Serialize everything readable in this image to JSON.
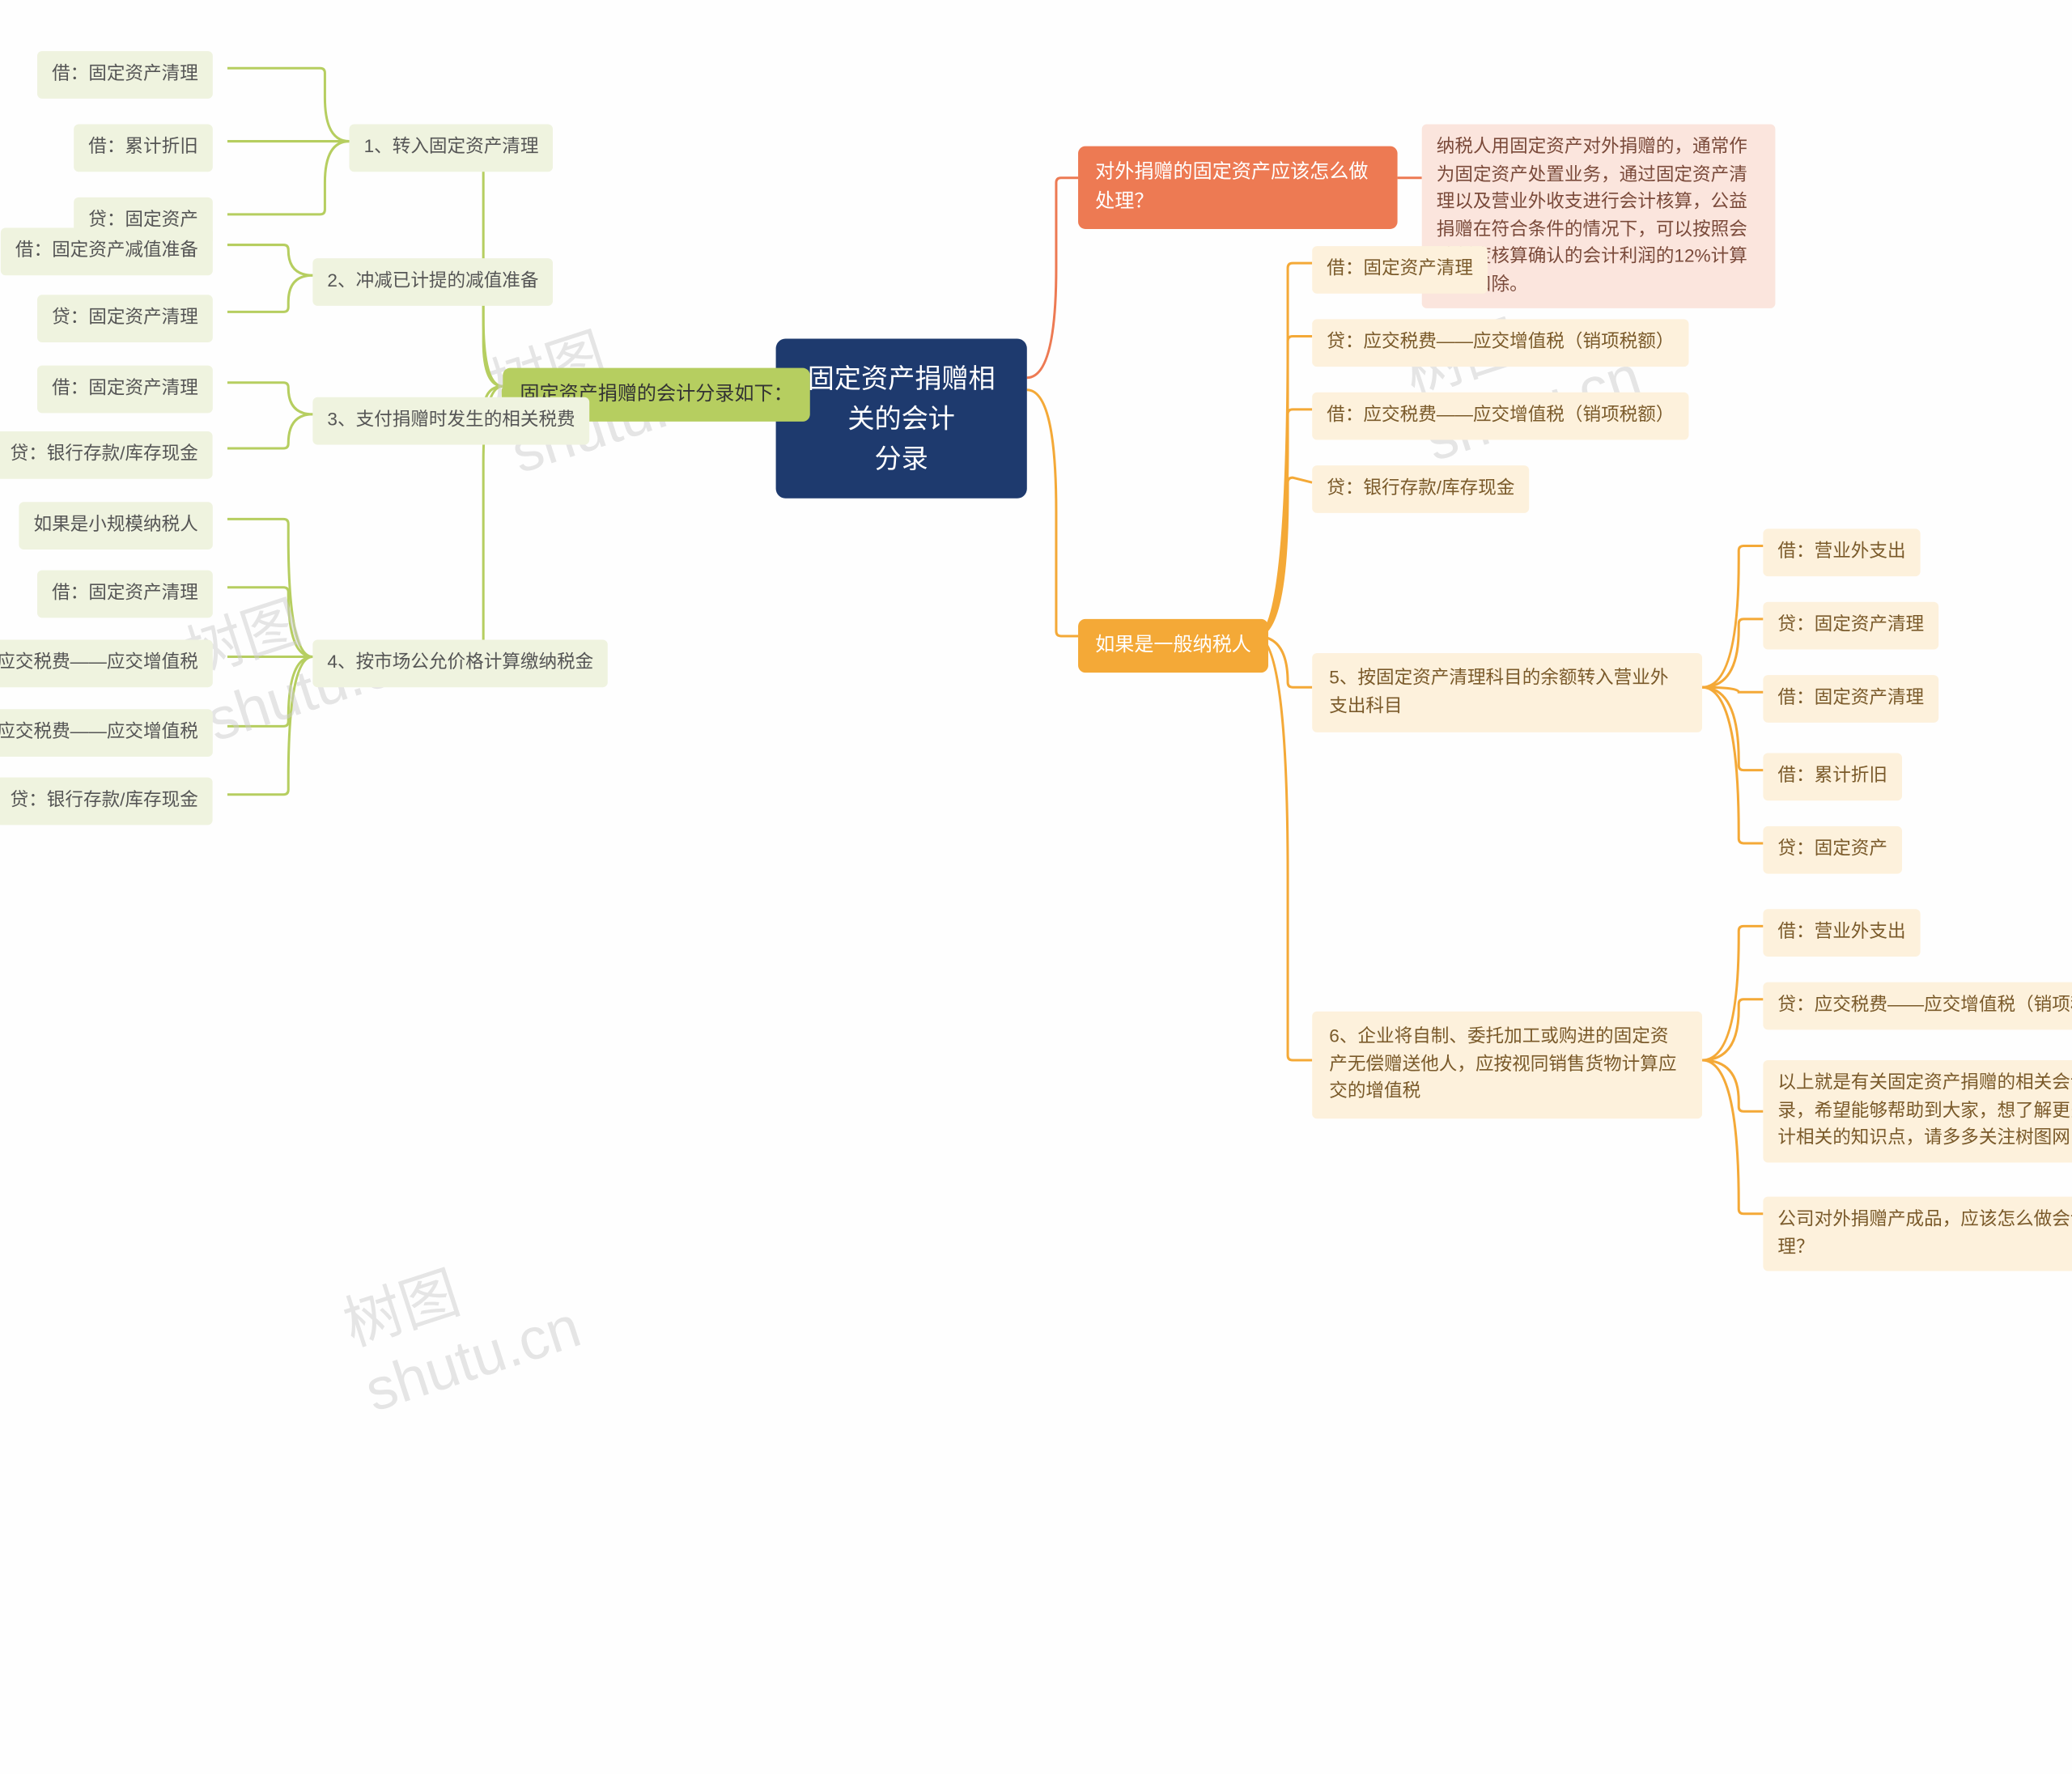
{
  "colors": {
    "center_bg": "#1e3a6e",
    "center_text": "#ffffff",
    "green_branch": "#b6ce60",
    "green_leaf_bg": "#eff3df",
    "green_leaf_text": "#555555",
    "green_line": "#b6ce60",
    "orange_branch": "#ed7a53",
    "orange_leaf_bg": "#fbe5dd",
    "orange_leaf_text": "#7a4a3a",
    "orange_line": "#ed7a53",
    "amber_branch": "#f4a937",
    "amber_leaf_bg": "#fdf1dc",
    "amber_leaf_text": "#7a5a2a",
    "amber_line": "#f4a937",
    "background": "#fefefe"
  },
  "center": {
    "title": "固定资产捐赠相关的会计\n分录"
  },
  "left": {
    "branch": "固定资产捐赠的会计分录如下：",
    "groups": [
      {
        "label": "1、转入固定资产清理",
        "leaves": [
          "借：固定资产清理",
          "借：累计折旧",
          "贷：固定资产"
        ]
      },
      {
        "label": "2、冲减已计提的减值准备",
        "leaves": [
          "借：固定资产减值准备",
          "贷：固定资产清理"
        ]
      },
      {
        "label": "3、支付捐赠时发生的相关税费",
        "leaves": [
          "借：固定资产清理",
          "贷：银行存款/库存现金"
        ]
      },
      {
        "label": "4、按市场公允价格计算缴纳税金",
        "leaves": [
          "如果是小规模纳税人",
          "借：固定资产清理",
          "贷：应交税费——应交增值税",
          "借：应交税费——应交增值税",
          "贷：银行存款/库存现金"
        ]
      }
    ]
  },
  "right_orange": {
    "branch": "对外捐赠的固定资产应该怎么做处理？",
    "leaf": "纳税人用固定资产对外捐赠的，通常作为固定资产处置业务，通过固定资产清理以及营业外收支进行会计核算，公益捐赠在符合条件的情况下，可以按照会计制度核算确认的会计利润的12%计算税前扣除。"
  },
  "right_amber": {
    "branch": "如果是一般纳税人",
    "direct_leaves": [
      "借：固定资产清理",
      "贷：应交税费——应交增值税（销项税额）",
      "借：应交税费——应交增值税（销项税额）",
      "贷：银行存款/库存现金"
    ],
    "groups": [
      {
        "label": "5、按固定资产清理科目的余额转入营业外支出科目",
        "leaves": [
          "借：营业外支出",
          "贷：固定资产清理",
          "借：固定资产清理",
          "借：累计折旧",
          "贷：固定资产"
        ]
      },
      {
        "label": "6、企业将自制、委托加工或购进的固定资产无偿赠送他人，应按视同销售货物计算应交的增值税",
        "leaves": [
          "借：营业外支出",
          "贷：应交税费——应交增值税（销项税额）",
          "以上就是有关固定资产捐赠的相关会计分录，希望能够帮助到大家，想了解更多会计相关的知识点，请多多关注树图网！",
          "公司对外捐赠产成品，应该怎么做会计处理？"
        ]
      }
    ]
  },
  "watermark": "树图 shutu.cn"
}
